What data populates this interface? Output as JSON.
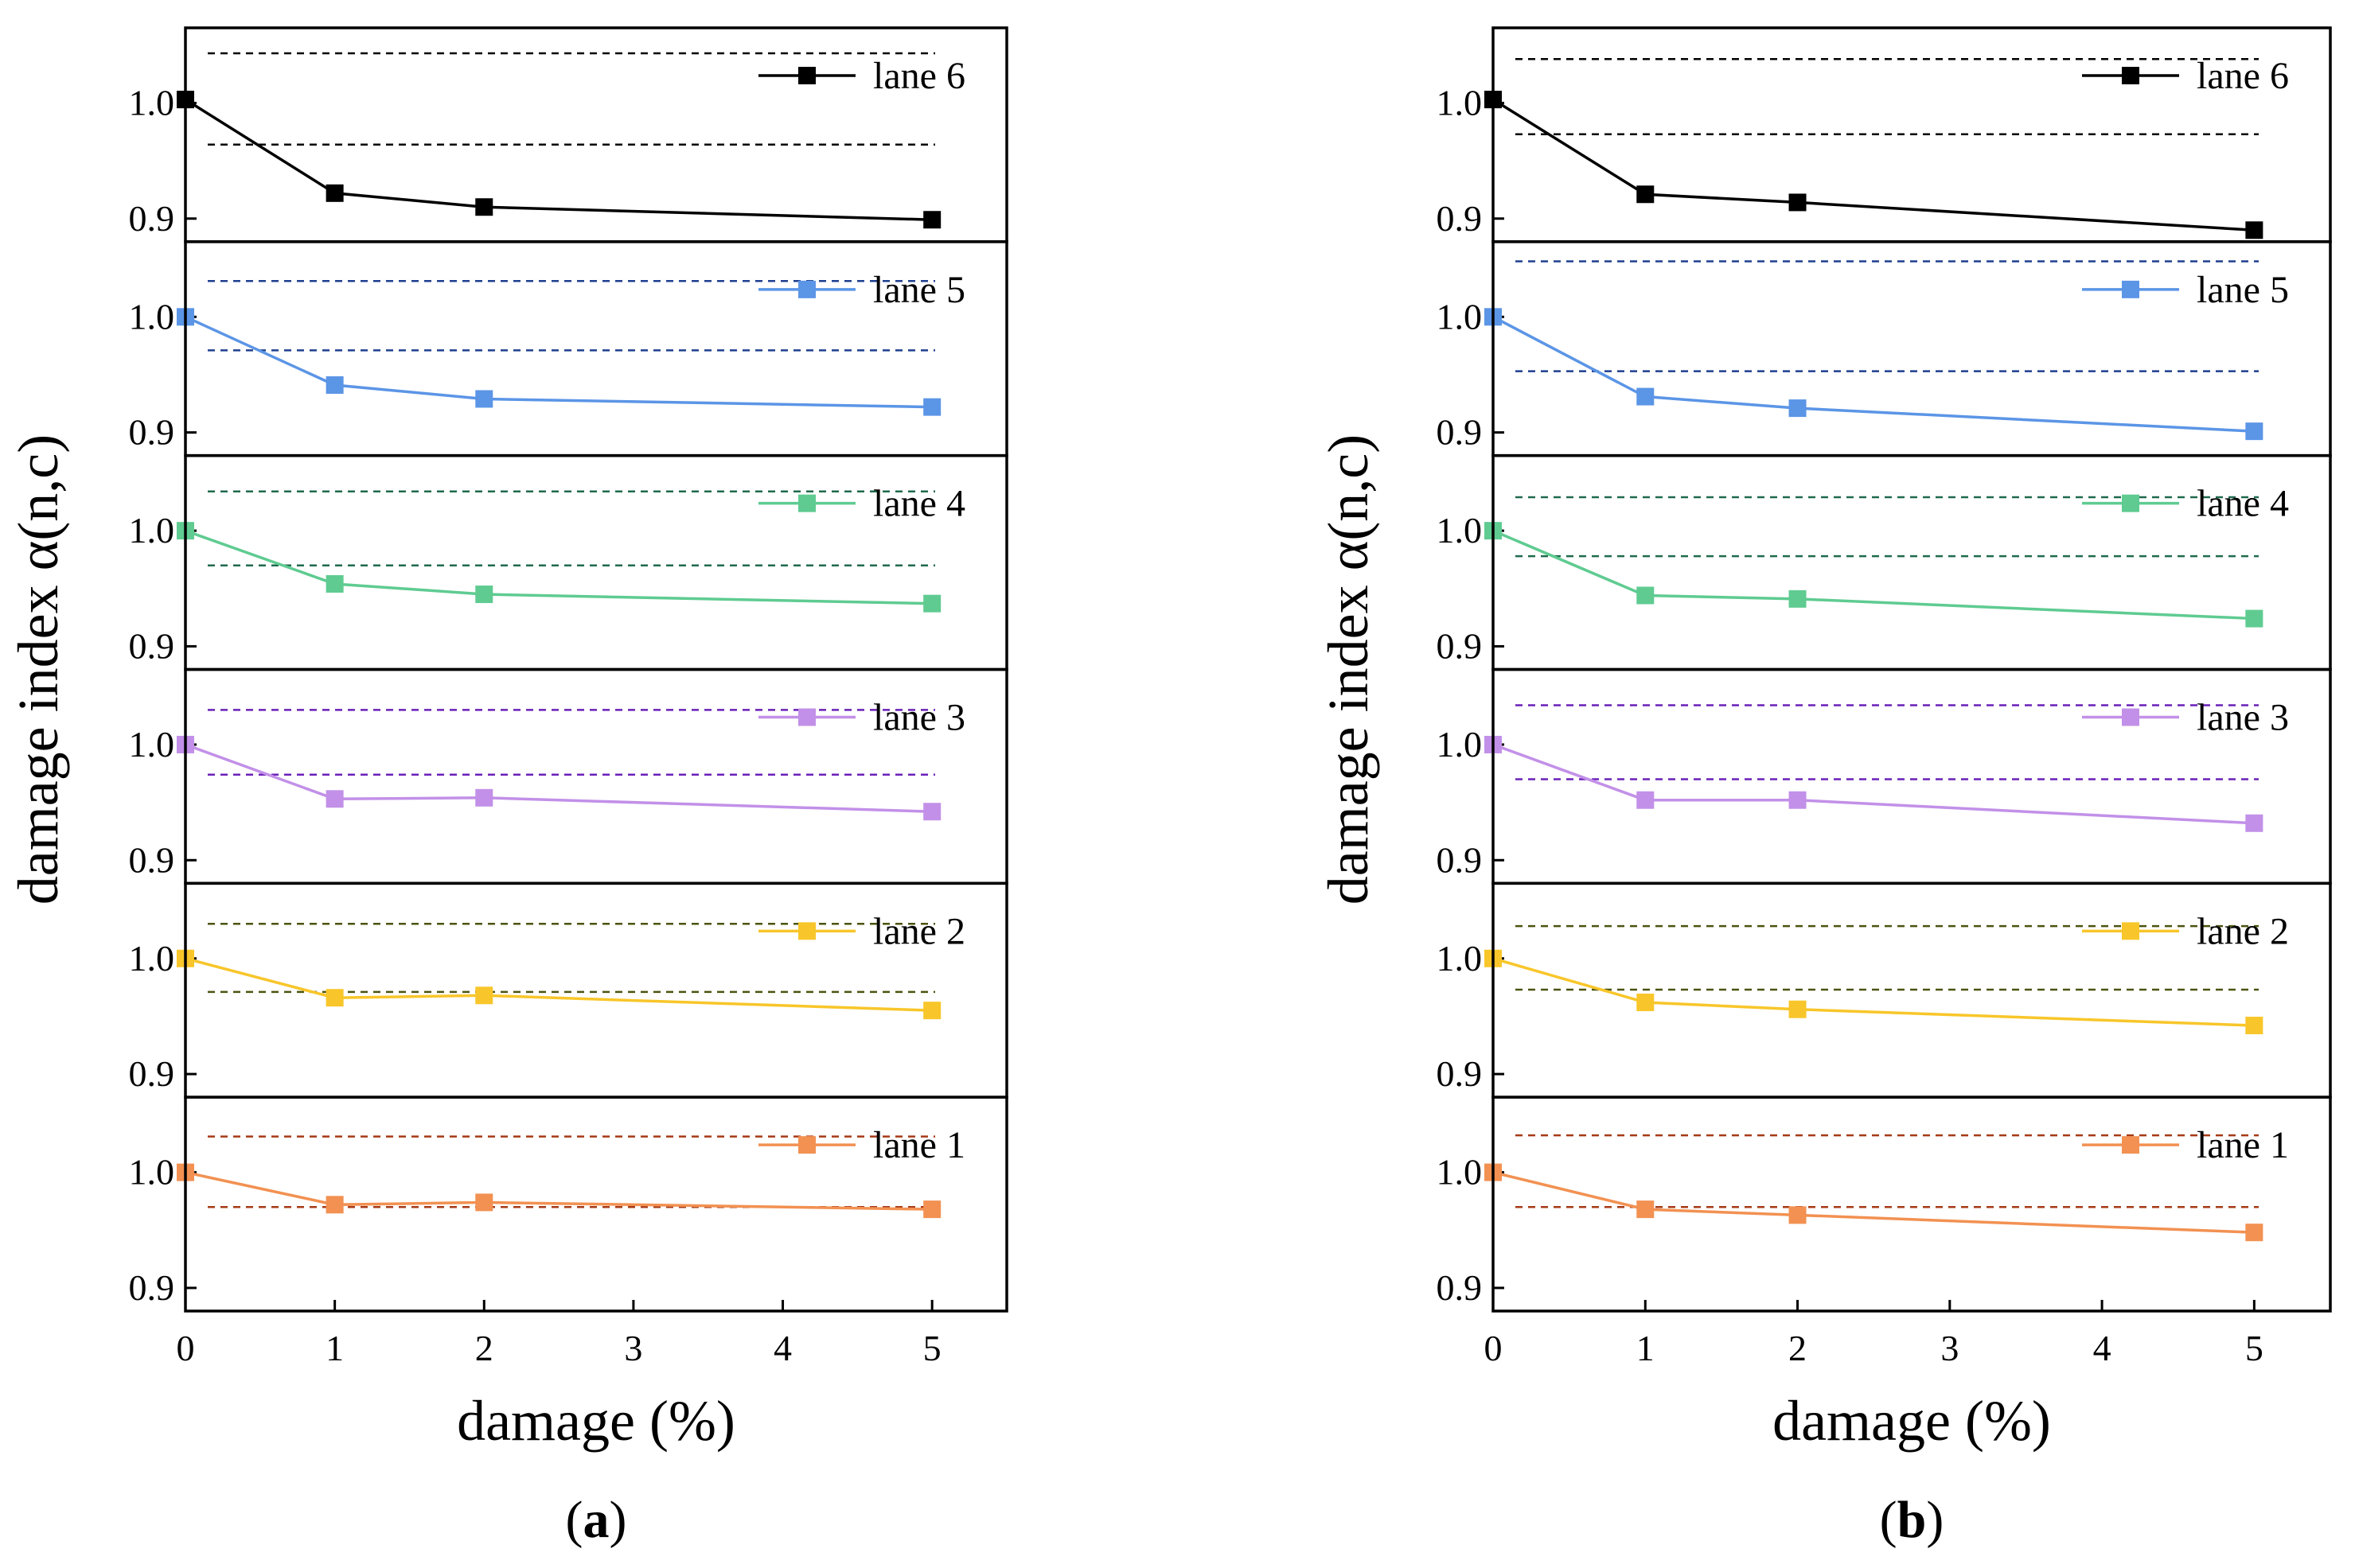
{
  "chart_data": [
    {
      "type": "line",
      "panel_label": "a",
      "xlabel": "damage (%)",
      "ylabel": "damage index α(n,c)",
      "x": [
        0,
        1,
        2,
        5
      ],
      "xlim": [
        0,
        5.5
      ],
      "xticks": [
        "0",
        "1",
        "2",
        "3",
        "4",
        "5"
      ],
      "ylim": [
        0.88,
        1.065
      ],
      "yticks": [
        "0.9",
        "1.0"
      ],
      "marker": "square",
      "series": [
        {
          "name": "lane 6",
          "color": "#000000",
          "threshold_color": "#000000",
          "values": [
            1.003,
            0.922,
            0.91,
            0.899
          ],
          "thresholds": [
            1.043,
            0.964
          ]
        },
        {
          "name": "lane 5",
          "color": "#5B95E6",
          "threshold_color": "#1F3F8F",
          "values": [
            1.0,
            0.941,
            0.929,
            0.922
          ],
          "thresholds": [
            1.031,
            0.971
          ]
        },
        {
          "name": "lane 4",
          "color": "#5FCB91",
          "threshold_color": "#1F6A4C",
          "values": [
            1.0,
            0.954,
            0.945,
            0.937
          ],
          "thresholds": [
            1.034,
            0.97
          ]
        },
        {
          "name": "lane 3",
          "color": "#C290E8",
          "threshold_color": "#6A20B8",
          "values": [
            1.0,
            0.953,
            0.954,
            0.942
          ],
          "thresholds": [
            1.03,
            0.974
          ]
        },
        {
          "name": "lane 2",
          "color": "#F8C62A",
          "threshold_color": "#4D5310",
          "values": [
            1.0,
            0.966,
            0.968,
            0.955
          ],
          "thresholds": [
            1.03,
            0.971
          ]
        },
        {
          "name": "lane 1",
          "color": "#F29152",
          "threshold_color": "#A63A16",
          "values": [
            1.0,
            0.972,
            0.974,
            0.968
          ],
          "thresholds": [
            1.031,
            0.97
          ]
        }
      ]
    },
    {
      "type": "line",
      "panel_label": "b",
      "xlabel": "damage (%)",
      "ylabel": "damage index α(n,c)",
      "x": [
        0,
        1,
        2,
        5
      ],
      "xlim": [
        0,
        5.5
      ],
      "xticks": [
        "0",
        "1",
        "2",
        "3",
        "4",
        "5"
      ],
      "ylim": [
        0.88,
        1.065
      ],
      "yticks": [
        "0.9",
        "1.0"
      ],
      "marker": "square",
      "series": [
        {
          "name": "lane 6",
          "color": "#000000",
          "threshold_color": "#000000",
          "values": [
            1.003,
            0.921,
            0.914,
            0.89
          ],
          "thresholds": [
            1.038,
            0.973
          ]
        },
        {
          "name": "lane 5",
          "color": "#5B95E6",
          "threshold_color": "#1F3F8F",
          "values": [
            1.0,
            0.931,
            0.921,
            0.901
          ],
          "thresholds": [
            1.048,
            0.953
          ]
        },
        {
          "name": "lane 4",
          "color": "#5FCB91",
          "threshold_color": "#1F6A4C",
          "values": [
            1.0,
            0.944,
            0.941,
            0.924
          ],
          "thresholds": [
            1.029,
            0.978
          ]
        },
        {
          "name": "lane 3",
          "color": "#C290E8",
          "threshold_color": "#6A20B8",
          "values": [
            1.0,
            0.952,
            0.952,
            0.932
          ],
          "thresholds": [
            1.034,
            0.97
          ]
        },
        {
          "name": "lane 2",
          "color": "#F8C62A",
          "threshold_color": "#4D5310",
          "values": [
            1.0,
            0.962,
            0.956,
            0.942
          ],
          "thresholds": [
            1.028,
            0.973
          ]
        },
        {
          "name": "lane 1",
          "color": "#F29152",
          "threshold_color": "#A63A16",
          "values": [
            1.0,
            0.968,
            0.963,
            0.948
          ],
          "thresholds": [
            1.032,
            0.97
          ]
        }
      ]
    }
  ]
}
